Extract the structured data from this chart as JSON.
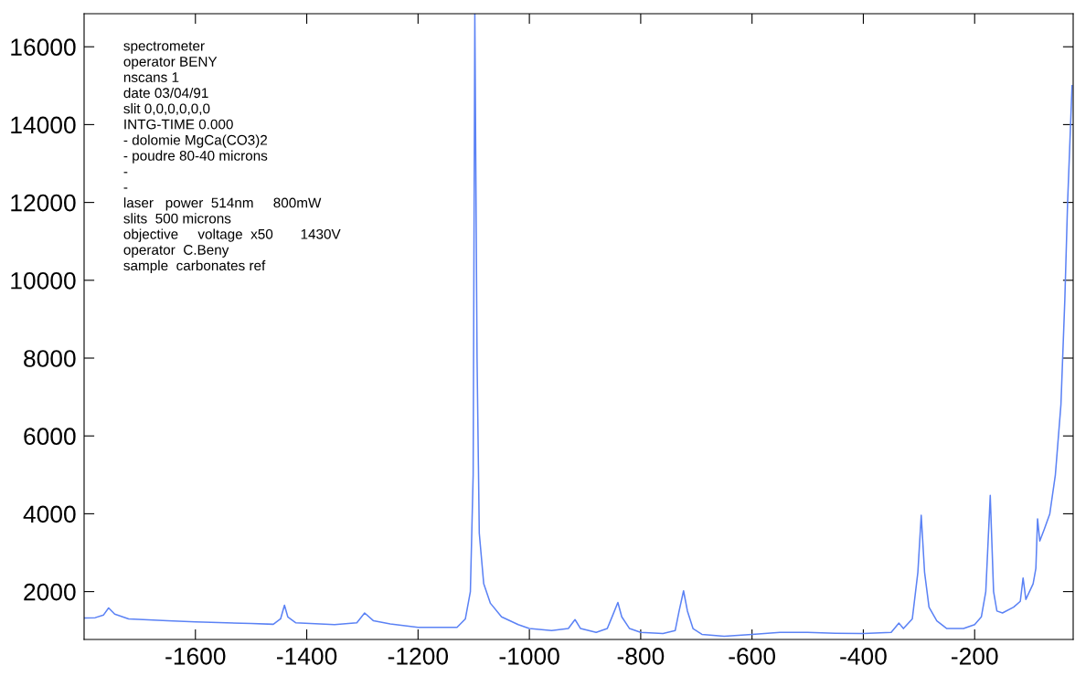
{
  "chart_data": {
    "type": "line",
    "x": [
      -1800,
      -1780,
      -1765,
      -1756,
      -1745,
      -1720,
      -1650,
      -1600,
      -1500,
      -1460,
      -1447,
      -1440,
      -1434,
      -1420,
      -1350,
      -1310,
      -1296,
      -1280,
      -1250,
      -1200,
      -1130,
      -1115,
      -1106,
      -1101,
      -1098,
      -1094,
      -1090,
      -1082,
      -1070,
      -1050,
      -1020,
      -1000,
      -960,
      -930,
      -918,
      -908,
      -880,
      -860,
      -850,
      -841,
      -834,
      -820,
      -800,
      -760,
      -738,
      -731,
      -723,
      -716,
      -706,
      -690,
      -650,
      -600,
      -550,
      -500,
      -450,
      -400,
      -350,
      -336,
      -328,
      -312,
      -302,
      -296,
      -290,
      -282,
      -268,
      -250,
      -220,
      -200,
      -188,
      -180,
      -172,
      -166,
      -160,
      -150,
      -130,
      -118,
      -113,
      -108,
      -95,
      -90,
      -87,
      -83,
      -75,
      -65,
      -55,
      -45,
      -38,
      -33,
      -25
    ],
    "series": [
      {
        "color": "#5b82f5",
        "values": [
          1320,
          1330,
          1400,
          1580,
          1420,
          1300,
          1250,
          1220,
          1180,
          1160,
          1300,
          1650,
          1350,
          1200,
          1150,
          1200,
          1450,
          1250,
          1170,
          1080,
          1080,
          1300,
          2000,
          5000,
          16850,
          8000,
          3500,
          2200,
          1700,
          1350,
          1150,
          1050,
          1000,
          1050,
          1280,
          1050,
          950,
          1050,
          1400,
          1720,
          1350,
          1050,
          950,
          920,
          1000,
          1500,
          2020,
          1500,
          1050,
          900,
          850,
          900,
          950,
          950,
          930,
          920,
          950,
          1190,
          1050,
          1300,
          2500,
          3960,
          2500,
          1600,
          1250,
          1050,
          1050,
          1150,
          1350,
          2000,
          4470,
          2000,
          1500,
          1450,
          1600,
          1750,
          2350,
          1800,
          2200,
          2600,
          3870,
          3300,
          3600,
          4000,
          5000,
          6800,
          9500,
          12000,
          15000
        ]
      }
    ],
    "xlim": [
      -1800,
      -23
    ],
    "ylim": [
      770,
      16850
    ],
    "xticks": [
      -1600,
      -1400,
      -1200,
      -1000,
      -800,
      -600,
      -400,
      -200
    ],
    "yticks": [
      2000,
      4000,
      6000,
      8000,
      10000,
      12000,
      14000,
      16000
    ],
    "grid": false,
    "legend": false,
    "marker": "none",
    "line_style": "solid",
    "annotations": [
      "spectrometer",
      "operator BENY",
      "nscans 1",
      "date 03/04/91",
      "slit 0,0,0,0,0,0",
      "INTG-TIME 0.000",
      "- dolomie MgCa(CO3)2",
      "- poudre 80-40 microns",
      "-",
      "-",
      "laser   power  514nm     800mW",
      "slits  500 microns",
      "objective     voltage  x50       1430V",
      "operator  C.Beny",
      "sample  carbonates ref"
    ]
  }
}
